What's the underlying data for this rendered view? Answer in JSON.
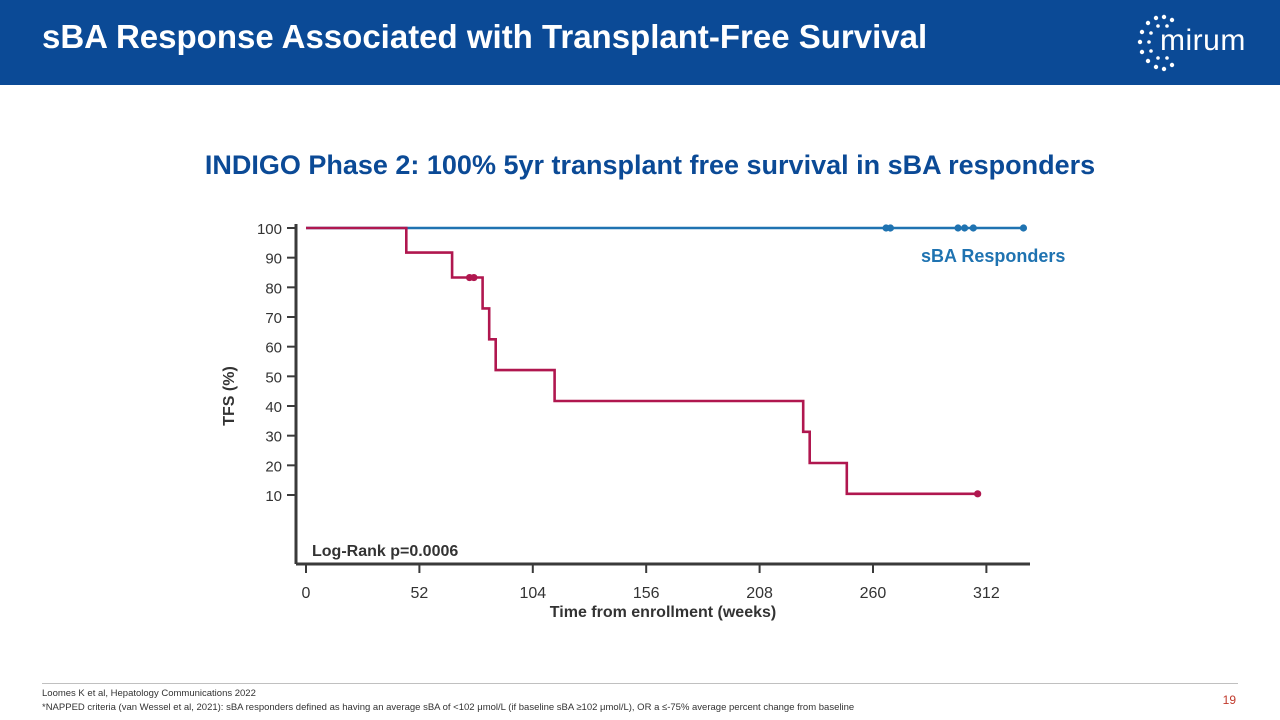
{
  "header": {
    "title": "sBA Response Associated with Transplant-Free Survival",
    "logo_text": "mirum"
  },
  "subtitle": "INDIGO Phase 2: 100% 5yr transplant free survival in sBA responders",
  "chart_data": {
    "type": "line",
    "xlabel": "Time from enrollment (weeks)",
    "ylabel": "TFS (%)",
    "xticks": [
      0,
      52,
      104,
      156,
      208,
      260,
      312
    ],
    "yticks": [
      10,
      20,
      30,
      40,
      50,
      60,
      70,
      80,
      90,
      100
    ],
    "xlim": [
      0,
      332
    ],
    "ylim": [
      0,
      100
    ],
    "annotation": "Log-Rank p=0.0006",
    "series": [
      {
        "name": "sBA Responders",
        "color": "#1f73b1",
        "steps": [
          [
            0,
            100
          ],
          [
            329,
            100
          ]
        ],
        "censored": [
          [
            266,
            100
          ],
          [
            268,
            100
          ],
          [
            299,
            100
          ],
          [
            302,
            100
          ],
          [
            306,
            100
          ],
          [
            329,
            100
          ]
        ]
      },
      {
        "name": "",
        "color": "#b0174f",
        "steps": [
          [
            0,
            100
          ],
          [
            46,
            100
          ],
          [
            46,
            91.7
          ],
          [
            67,
            91.7
          ],
          [
            67,
            83.3
          ],
          [
            81,
            83.3
          ],
          [
            81,
            72.9
          ],
          [
            84,
            72.9
          ],
          [
            84,
            62.5
          ],
          [
            87,
            62.5
          ],
          [
            87,
            52.1
          ],
          [
            114,
            52.1
          ],
          [
            114,
            41.7
          ],
          [
            228,
            41.7
          ],
          [
            228,
            31.3
          ],
          [
            231,
            31.3
          ],
          [
            231,
            20.8
          ],
          [
            248,
            20.8
          ],
          [
            248,
            10.4
          ],
          [
            308,
            10.4
          ]
        ],
        "censored": [
          [
            75,
            83.3
          ],
          [
            77,
            83.3
          ],
          [
            308,
            10.4
          ]
        ]
      }
    ]
  },
  "footnotes": [
    "Loomes K et al, Hepatology Communications 2022",
    "*NAPPED criteria (van Wessel et al, 2021): sBA responders defined as having an average sBA of <102 μmol/L (if baseline sBA ≥102 μmol/L), OR a ≤-75% average percent change from baseline"
  ],
  "page_number": "19"
}
